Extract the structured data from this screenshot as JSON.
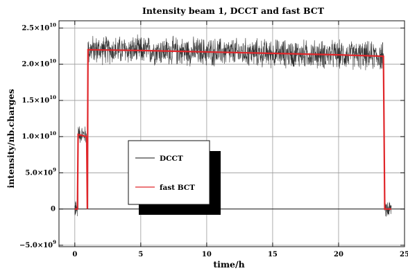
{
  "chart_data": {
    "type": "line",
    "title": "Intensity beam 1, DCCT and fast BCT",
    "xlabel": "time/h",
    "ylabel": "intensity/nb.charges",
    "xlim": [
      -1.2,
      25
    ],
    "ylim": [
      -5200000000.0,
      26000000000.0
    ],
    "grid": true,
    "legend_position": "center-left",
    "x_ticks": [
      {
        "value": 0,
        "label": "0"
      },
      {
        "value": 5,
        "label": "5"
      },
      {
        "value": 10,
        "label": "10"
      },
      {
        "value": 15,
        "label": "15"
      },
      {
        "value": 20,
        "label": "20"
      },
      {
        "value": 25,
        "label": "25"
      }
    ],
    "y_ticks": [
      {
        "value": 25000000000.0,
        "mantissa": "2.5×10",
        "exponent": "10"
      },
      {
        "value": 20000000000.0,
        "mantissa": "2.0×10",
        "exponent": "10"
      },
      {
        "value": 15000000000.0,
        "mantissa": "1.5×10",
        "exponent": "10"
      },
      {
        "value": 10000000000.0,
        "mantissa": "1.0×10",
        "exponent": "10"
      },
      {
        "value": 5000000000.0,
        "mantissa": "5.0×10",
        "exponent": "9"
      },
      {
        "value": 0,
        "mantissa": "0",
        "exponent": ""
      },
      {
        "value": -5000000000.0,
        "mantissa": "−5.0×10",
        "exponent": "9"
      }
    ],
    "series": [
      {
        "name": "DCCT",
        "color": "#111111",
        "points": [
          {
            "x": 0.0,
            "y": 0,
            "noise": 1400000000.0
          },
          {
            "x": 0.2,
            "y": 0,
            "noise": 1400000000.0
          },
          {
            "x": 0.25,
            "y": 10400000000.0,
            "noise": 1500000000.0
          },
          {
            "x": 0.9,
            "y": 10200000000.0,
            "noise": 1500000000.0
          },
          {
            "x": 0.95,
            "y": 0,
            "noise": 1000000000.0
          },
          {
            "x": 1.0,
            "y": 22000000000.0,
            "noise": 2300000000.0
          },
          {
            "x": 5,
            "y": 21900000000.0,
            "noise": 2300000000.0
          },
          {
            "x": 10,
            "y": 21700000000.0,
            "noise": 2300000000.0
          },
          {
            "x": 15,
            "y": 21500000000.0,
            "noise": 2300000000.0
          },
          {
            "x": 20,
            "y": 21300000000.0,
            "noise": 2300000000.0
          },
          {
            "x": 23.4,
            "y": 21100000000.0,
            "noise": 2300000000.0
          },
          {
            "x": 23.5,
            "y": 0,
            "noise": 1500000000.0
          },
          {
            "x": 24.0,
            "y": 0,
            "noise": 1500000000.0
          }
        ]
      },
      {
        "name": "fast BCT",
        "color": "#e0262a",
        "points": [
          {
            "x": 0.0,
            "y": 0
          },
          {
            "x": 0.2,
            "y": 0
          },
          {
            "x": 0.25,
            "y": 10300000000.0
          },
          {
            "x": 0.9,
            "y": 10000000000.0
          },
          {
            "x": 0.95,
            "y": 0
          },
          {
            "x": 1.0,
            "y": 22000000000.0
          },
          {
            "x": 5,
            "y": 21900000000.0
          },
          {
            "x": 10,
            "y": 21700000000.0
          },
          {
            "x": 15,
            "y": 21500000000.0
          },
          {
            "x": 20,
            "y": 21300000000.0
          },
          {
            "x": 23.4,
            "y": 21100000000.0
          },
          {
            "x": 23.5,
            "y": 0
          },
          {
            "x": 24.0,
            "y": 0
          }
        ]
      }
    ]
  }
}
